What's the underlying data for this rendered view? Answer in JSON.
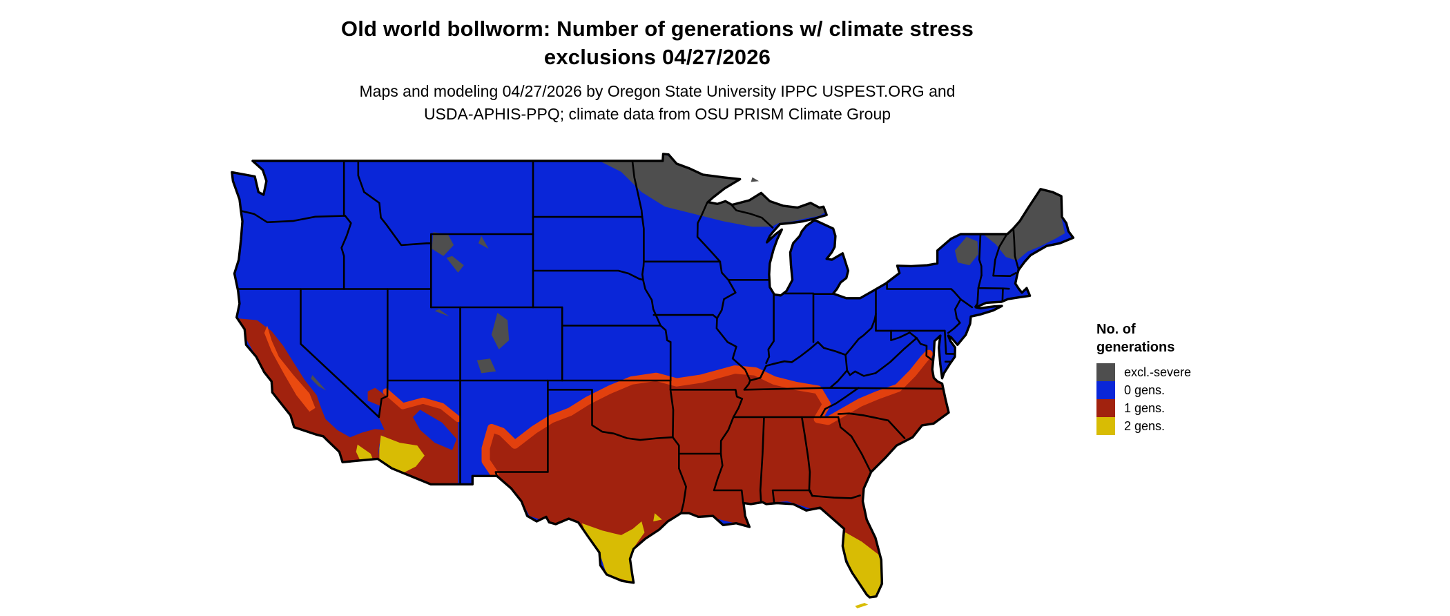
{
  "header": {
    "title_line1": "Old world bollworm: Number of generations w/ climate stress",
    "title_line2": "exclusions 04/27/2026",
    "subtitle_line1": "Maps and modeling 04/27/2026 by Oregon State University IPPC USPEST.ORG and",
    "subtitle_line2": "USDA-APHIS-PPQ; climate data from OSU PRISM Climate Group"
  },
  "legend": {
    "title_line1": "No. of",
    "title_line2": "generations",
    "entries": [
      {
        "label": "excl.-severe",
        "color": "#4E4E4E"
      },
      {
        "label": "0 gens.",
        "color": "#0A26D8"
      },
      {
        "label": "1 gens.",
        "color": "#A1220E"
      },
      {
        "label": "2 gens.",
        "color": "#D8BC04"
      }
    ]
  },
  "map_data": {
    "type": "categorical-raster-map",
    "area": "Contiguous United States with state boundaries",
    "date": "04/27/2026",
    "variable": "Old world bollworm: number of generations with climate stress exclusions",
    "border_color": "#000000",
    "background_color": "#ffffff",
    "transition_color": "#E2400E",
    "valley_color": "#EA4A10",
    "categories": [
      {
        "label": "excl.-severe",
        "color": "#4E4E4E",
        "coverage": "northern North Dakota and Minnesota, northern Wisconsin, Michigan Upper Peninsula, Adirondacks, northern New England and Maine, high Rocky Mountain pockets"
      },
      {
        "label": "0 gens.",
        "color": "#0A26D8",
        "coverage": "most of the northern and central US: Pacific Northwest, Great Basin, Rockies, Plains, Midwest, Northeast and Appalachians"
      },
      {
        "label": "1 gens.",
        "color": "#A1220E",
        "coverage": "southern tier: coastal and Central Valley California, southern Nevada, southern Arizona and New Mexico, Texas, Oklahoma, the Gulf states and Southeast north to Virginia"
      },
      {
        "label": "2 gens.",
        "color": "#D8BC04",
        "coverage": "south Texas, central and south Florida with Keys, southwest Arizona low desert, Imperial Valley California"
      }
    ]
  }
}
